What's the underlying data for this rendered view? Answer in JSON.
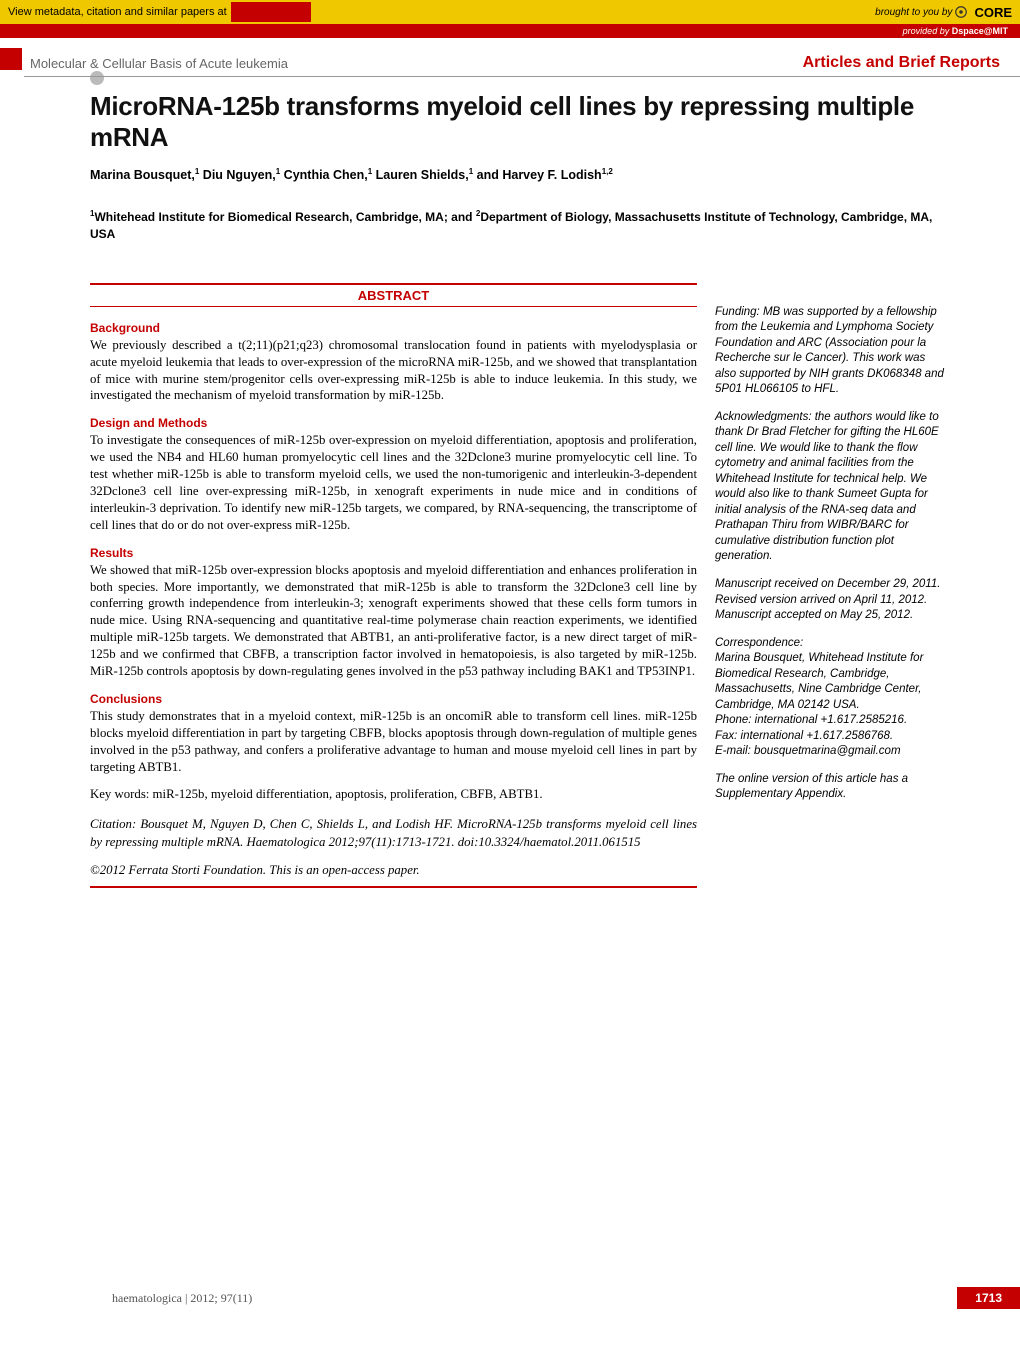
{
  "core_bar": {
    "meta_text": "View metadata, citation and similar papers at",
    "brought": "brought to you by",
    "logo": "CORE"
  },
  "dspace": {
    "provided": "provided by ",
    "name": "Dspace@MIT"
  },
  "header": {
    "section": "Molecular & Cellular Basis of Acute leukemia",
    "type": "Articles and Brief Reports"
  },
  "title": "MicroRNA-125b transforms myeloid cell lines by repressing multiple mRNA",
  "authors_html": "Marina Bousquet,<sup>1</sup> Diu Nguyen,<sup>1</sup> Cynthia Chen,<sup>1</sup> Lauren Shields,<sup>1</sup> and Harvey F. Lodish<sup>1,2</sup>",
  "affil_html": "<sup>1</sup>Whitehead Institute for Biomedical Research, Cambridge, MA; and <sup>2</sup>Department of Biology, Massachusetts Institute of Technology, Cambridge, MA, USA",
  "abstract_label": "ABSTRACT",
  "sections": {
    "background": {
      "head": "Background",
      "text": "We previously described a t(2;11)(p21;q23) chromosomal translocation found in patients with myelodysplasia or acute myeloid leukemia that leads to over-expression of the microRNA miR-125b, and we showed that transplantation of mice with murine stem/progenitor cells over-expressing miR-125b is able to induce leukemia. In this study, we investigated the mechanism of myeloid transformation by miR-125b."
    },
    "design": {
      "head": "Design and Methods",
      "text": "To investigate the consequences of miR-125b over-expression on myeloid differentiation, apoptosis and proliferation, we used the NB4 and HL60 human promyelocytic cell lines and the 32Dclone3 murine promyelocytic cell line. To test whether miR-125b is able to transform myeloid cells, we used the non-tumorigenic and interleukin-3-dependent 32Dclone3 cell line over-expressing miR-125b, in xenograft experiments in nude mice and in conditions of interleukin-3 deprivation. To identify new miR-125b targets, we compared, by RNA-sequencing, the transcriptome of cell lines that do or do not over-express miR-125b."
    },
    "results": {
      "head": "Results",
      "text": "We showed that miR-125b over-expression blocks apoptosis and myeloid differentiation and enhances proliferation in both species. More importantly, we demonstrated that miR-125b is able to transform the 32Dclone3 cell line by conferring growth independence from interleukin-3; xenograft experiments showed that these cells form tumors in nude mice. Using RNA-sequencing and quantitative real-time polymerase chain reaction experiments, we identified multiple miR-125b targets. We demonstrated that ABTB1, an anti-proliferative factor, is a new direct target of miR-125b and we confirmed that CBFB, a transcription factor involved in hematopoiesis, is also targeted by miR-125b. MiR-125b controls apoptosis by down-regulating genes involved in the p53 pathway including BAK1 and TP53INP1."
    },
    "conclusions": {
      "head": "Conclusions",
      "text": "This study demonstrates that in a myeloid context, miR-125b is an oncomiR able to transform cell lines. miR-125b blocks myeloid differentiation in part by targeting CBFB, blocks apoptosis through down-regulation of multiple genes involved in the p53 pathway, and confers a proliferative advantage to human and mouse myeloid cell lines in part by targeting ABTB1."
    }
  },
  "keywords": "Key words: miR-125b, myeloid differentiation, apoptosis, proliferation, CBFB, ABTB1.",
  "citation": "Citation: Bousquet M, Nguyen D, Chen C, Shields L, and Lodish HF. MicroRNA-125b transforms myeloid cell lines by repressing multiple mRNA. Haematologica 2012;97(11):1713-1721. doi:10.3324/haematol.2011.061515",
  "copyright": "©2012 Ferrata Storti Foundation. This is an open-access paper.",
  "sidebar": {
    "funding": "Funding: MB was supported by a fellowship from the Leukemia and Lymphoma Society Foundation and ARC (Association pour la Recherche sur le Cancer). This work was also supported by NIH grants DK068348 and 5P01 HL066105 to HFL.",
    "ack": "Acknowledgments: the authors would like to thank Dr Brad Fletcher for gifting the HL60E cell line. We would like to thank the flow cytometry and animal facilities from the Whitehead Institute for technical help. We would also like to thank Sumeet Gupta for initial analysis of the RNA-seq data and Prathapan Thiru from WIBR/BARC for cumulative distribution function plot generation.",
    "dates": "Manuscript received on December 29, 2011. Revised version arrived on April 11, 2012. Manuscript accepted on May 25, 2012.",
    "corr": "Correspondence:\nMarina Bousquet, Whitehead Institute for Biomedical Research, Cambridge, Massachusetts, Nine Cambridge Center, Cambridge, MA 02142 USA.\nPhone: international +1.617.2585216.\nFax: international +1.617.2586768.\nE-mail: bousquetmarina@gmail.com",
    "supp": "The online version of this article has a Supplementary Appendix."
  },
  "footer": {
    "left": "haematologica | 2012; 97(11)",
    "page": "1713"
  },
  "colors": {
    "accent": "#c40000",
    "yellow": "#f0c800"
  }
}
